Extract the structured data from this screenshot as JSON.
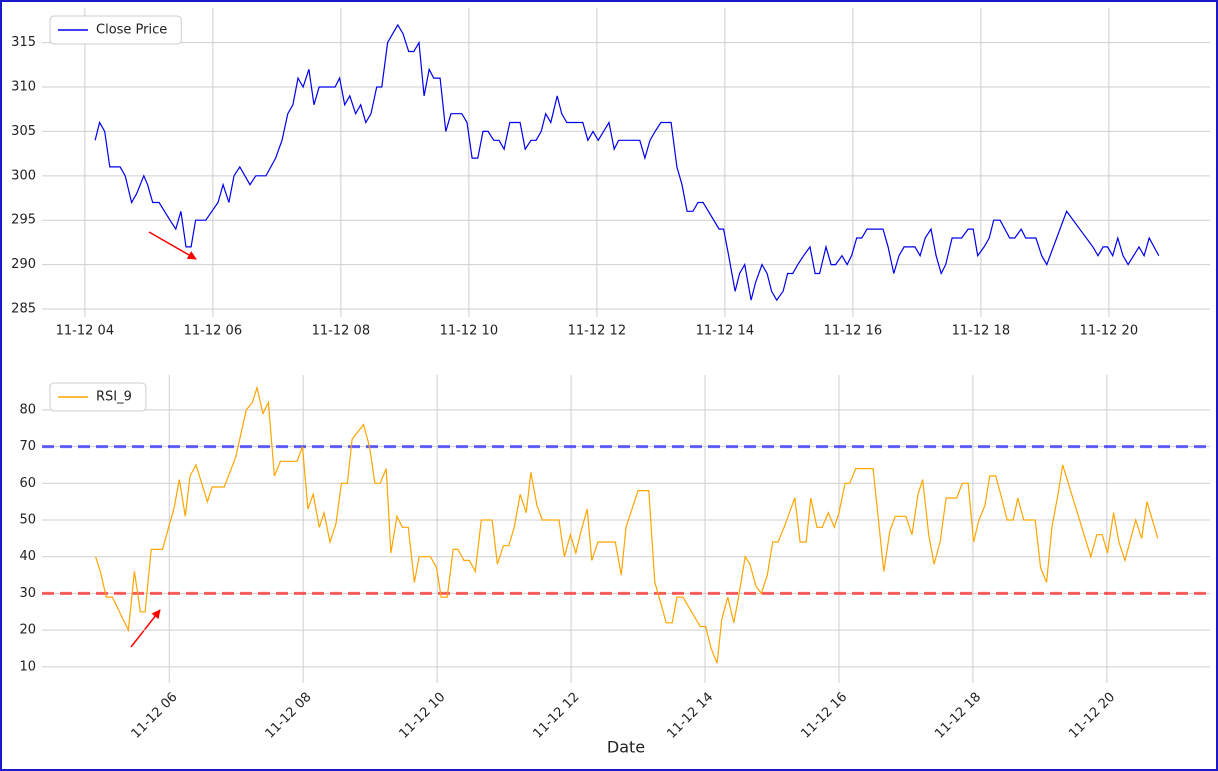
{
  "chart_data": [
    {
      "type": "line",
      "legend": "upper left",
      "grid": true,
      "series": [
        {
          "name": "Close Price",
          "color": "#0000ee",
          "values": [
            304,
            306,
            305,
            301,
            301,
            300,
            297,
            298,
            300,
            299,
            297,
            297,
            295,
            294,
            296,
            292,
            292,
            295,
            295,
            297,
            299,
            297,
            300,
            301,
            299,
            300,
            300,
            302,
            304,
            307,
            308,
            311,
            310,
            312,
            308,
            310,
            310,
            311,
            308,
            309,
            307,
            308,
            306,
            307,
            310,
            310,
            315,
            316,
            317,
            316,
            314,
            314,
            315,
            309,
            312,
            311,
            311,
            305,
            307,
            307,
            306,
            302,
            302,
            305,
            305,
            304,
            304,
            303,
            306,
            306,
            303,
            304,
            304,
            305,
            307,
            306,
            309,
            307,
            306,
            306,
            304,
            305,
            304,
            306,
            303,
            304,
            304,
            302,
            304,
            305,
            306,
            306,
            301,
            299,
            296,
            296,
            297,
            297,
            294,
            294,
            291,
            287,
            289,
            290,
            286,
            288,
            290,
            289,
            287,
            286,
            287,
            289,
            289,
            290,
            291,
            292,
            289,
            289,
            292,
            290,
            290,
            291,
            290,
            291,
            293,
            293,
            294,
            294,
            292,
            289,
            291,
            292,
            292,
            291,
            293,
            294,
            291,
            289,
            290,
            293,
            293,
            294,
            294,
            291,
            292,
            293,
            295,
            295,
            293,
            293,
            294,
            293,
            293,
            291,
            290,
            296,
            292,
            291,
            292,
            292,
            291,
            293,
            291,
            290,
            292,
            291,
            293,
            291
          ]
        }
      ],
      "x": [
        4.16,
        4.23,
        4.31,
        4.39,
        4.55,
        4.63,
        4.73,
        4.81,
        4.92,
        4.98,
        5.06,
        5.16,
        5.33,
        5.42,
        5.5,
        5.58,
        5.66,
        5.73,
        5.89,
        6.08,
        6.16,
        6.25,
        6.33,
        6.42,
        6.58,
        6.67,
        6.83,
        6.98,
        7.08,
        7.17,
        7.25,
        7.33,
        7.41,
        7.5,
        7.58,
        7.66,
        7.91,
        7.98,
        8.06,
        8.14,
        8.23,
        8.31,
        8.39,
        8.47,
        8.56,
        8.64,
        8.73,
        8.81,
        8.89,
        8.97,
        9.06,
        9.14,
        9.22,
        9.3,
        9.38,
        9.45,
        9.55,
        9.64,
        9.72,
        9.89,
        9.97,
        10.05,
        10.14,
        10.22,
        10.3,
        10.39,
        10.47,
        10.55,
        10.64,
        10.8,
        10.88,
        10.97,
        11.05,
        11.13,
        11.2,
        11.28,
        11.38,
        11.45,
        11.53,
        11.78,
        11.86,
        11.94,
        12.02,
        12.19,
        12.27,
        12.34,
        12.67,
        12.75,
        12.83,
        12.91,
        13.0,
        13.16,
        13.25,
        13.33,
        13.41,
        13.5,
        13.58,
        13.66,
        13.91,
        13.98,
        14.06,
        14.16,
        14.23,
        14.31,
        14.41,
        14.48,
        14.58,
        14.66,
        14.73,
        14.81,
        14.91,
        14.98,
        15.06,
        15.14,
        15.23,
        15.33,
        15.41,
        15.48,
        15.58,
        15.66,
        15.73,
        15.83,
        15.91,
        15.98,
        16.06,
        16.14,
        16.22,
        16.47,
        16.55,
        16.64,
        16.72,
        16.8,
        16.97,
        17.05,
        17.13,
        17.22,
        17.3,
        17.38,
        17.45,
        17.55,
        17.7,
        17.8,
        17.88,
        17.95,
        18.05,
        18.13,
        18.2,
        18.3,
        18.45,
        18.53,
        18.63,
        18.7,
        18.86,
        18.95,
        19.03,
        19.34,
        19.75,
        19.83,
        19.91,
        19.98,
        20.06,
        20.14,
        20.22,
        20.3,
        20.47,
        20.55,
        20.63,
        20.78
      ],
      "xlim": [
        3.33,
        21.58
      ],
      "ylim": [
        284.1,
        318.9
      ],
      "xticks": [
        {
          "value": 4,
          "label": "11-12 04"
        },
        {
          "value": 6,
          "label": "11-12 06"
        },
        {
          "value": 8,
          "label": "11-12 08"
        },
        {
          "value": 10,
          "label": "11-12 10"
        },
        {
          "value": 12,
          "label": "11-12 12"
        },
        {
          "value": 14,
          "label": "11-12 14"
        },
        {
          "value": 16,
          "label": "11-12 16"
        },
        {
          "value": 18,
          "label": "11-12 18"
        },
        {
          "value": 20,
          "label": "11-12 20"
        }
      ],
      "yticks": [
        285,
        290,
        295,
        300,
        305,
        310,
        315
      ]
    },
    {
      "type": "line",
      "legend": "upper left",
      "grid": true,
      "xlabel": "Date",
      "series": [
        {
          "name": "RSI_9",
          "color": "#ffa500",
          "values": [
            40,
            36,
            29,
            29,
            23,
            20,
            36,
            25,
            25,
            42,
            42,
            48,
            53,
            61,
            51,
            62,
            65,
            55,
            59,
            59,
            67,
            80,
            82,
            86,
            79,
            82,
            62,
            66,
            66,
            70,
            53,
            57,
            48,
            52,
            44,
            49,
            60,
            60,
            72,
            76,
            70,
            60,
            60,
            64,
            41,
            51,
            48,
            48,
            33,
            40,
            40,
            37,
            29,
            29,
            42,
            42,
            39,
            39,
            36,
            50,
            50,
            38,
            43,
            43,
            48,
            57,
            52,
            63,
            54,
            50,
            50,
            40,
            46,
            41,
            47,
            53,
            39,
            44,
            44,
            35,
            48,
            53,
            58,
            58,
            33,
            28,
            22,
            22,
            29,
            29,
            21,
            21,
            15,
            11,
            23,
            29,
            22,
            30,
            40,
            38,
            32,
            30,
            35,
            44,
            44,
            48,
            56,
            44,
            44,
            56,
            48,
            48,
            52,
            48,
            52,
            60,
            60,
            64,
            64,
            36,
            47,
            51,
            51,
            46,
            57,
            61,
            46,
            38,
            44,
            56,
            56,
            60,
            60,
            44,
            50,
            54,
            62,
            62,
            56,
            50,
            50,
            56,
            50,
            50,
            37,
            33,
            48,
            57,
            65,
            40,
            46,
            46,
            41,
            52,
            44,
            39,
            50,
            45,
            55,
            45
          ]
        }
      ],
      "x": [
        4.9,
        4.97,
        5.06,
        5.15,
        5.31,
        5.39,
        5.48,
        5.57,
        5.64,
        5.73,
        5.9,
        5.99,
        6.07,
        6.15,
        6.24,
        6.31,
        6.4,
        6.57,
        6.64,
        6.82,
        6.99,
        7.15,
        7.24,
        7.31,
        7.4,
        7.48,
        7.57,
        7.66,
        7.91,
        7.99,
        8.07,
        8.15,
        8.24,
        8.31,
        8.4,
        8.49,
        8.57,
        8.66,
        8.73,
        8.9,
        8.99,
        9.07,
        9.15,
        9.24,
        9.31,
        9.4,
        9.48,
        9.57,
        9.66,
        9.73,
        9.9,
        9.99,
        10.06,
        10.15,
        10.24,
        10.31,
        10.4,
        10.48,
        10.57,
        10.66,
        10.82,
        10.9,
        10.99,
        11.07,
        11.15,
        11.24,
        11.33,
        11.4,
        11.49,
        11.57,
        11.82,
        11.9,
        11.99,
        12.07,
        12.15,
        12.24,
        12.31,
        12.4,
        12.66,
        12.75,
        12.82,
        12.91,
        13.0,
        13.16,
        13.25,
        13.33,
        13.42,
        13.51,
        13.58,
        13.67,
        13.93,
        14.01,
        14.09,
        14.18,
        14.25,
        14.34,
        14.43,
        14.51,
        14.6,
        14.67,
        14.76,
        14.84,
        14.93,
        15.01,
        15.09,
        15.18,
        15.34,
        15.42,
        15.51,
        15.58,
        15.67,
        15.75,
        15.84,
        15.93,
        16.0,
        16.09,
        16.16,
        16.25,
        16.51,
        16.67,
        16.76,
        16.84,
        17.0,
        17.09,
        17.18,
        17.25,
        17.34,
        17.42,
        17.51,
        17.6,
        17.76,
        17.84,
        17.93,
        18.01,
        18.09,
        18.18,
        18.25,
        18.34,
        18.43,
        18.51,
        18.6,
        18.67,
        18.76,
        18.93,
        19.01,
        19.1,
        19.18,
        19.27,
        19.34,
        19.76,
        19.85,
        19.93,
        20.01,
        20.1,
        20.18,
        20.27,
        20.43,
        20.52,
        20.6,
        20.76
      ],
      "xlim": [
        4.1,
        21.54
      ],
      "ylim": [
        5.6,
        89.5
      ],
      "xticks": [
        {
          "value": 6,
          "label": "11-12 06"
        },
        {
          "value": 8,
          "label": "11-12 08"
        },
        {
          "value": 10,
          "label": "11-12 10"
        },
        {
          "value": 12,
          "label": "11-12 12"
        },
        {
          "value": 14,
          "label": "11-12 14"
        },
        {
          "value": 16,
          "label": "11-12 16"
        },
        {
          "value": 18,
          "label": "11-12 18"
        },
        {
          "value": 20,
          "label": "11-12 20"
        }
      ],
      "yticks": [
        10,
        20,
        30,
        40,
        50,
        60,
        70,
        80
      ],
      "hlines": [
        {
          "value": 70,
          "color": "#0000ff"
        },
        {
          "value": 30,
          "color": "#ff0000"
        }
      ]
    }
  ]
}
